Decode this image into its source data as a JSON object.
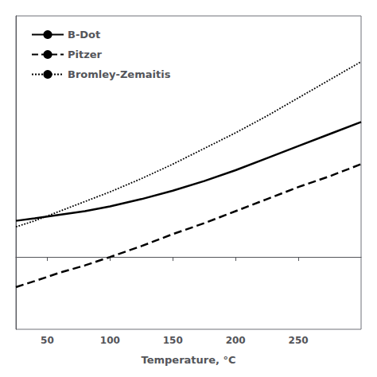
{
  "chart_data": {
    "type": "line",
    "xlabel": "Temperature, °C",
    "x": [
      25,
      40,
      60,
      80,
      100,
      125,
      150,
      175,
      200,
      225,
      250,
      275,
      300
    ],
    "series": [
      {
        "name": "B-Dot",
        "color": "#000000",
        "line_style": "solid",
        "values": [
          0.3,
          0.32,
          0.35,
          0.38,
          0.42,
          0.48,
          0.55,
          0.63,
          0.72,
          0.82,
          0.92,
          1.02,
          1.12
        ]
      },
      {
        "name": "Pitzer",
        "color": "#000000",
        "line_style": "dashed",
        "values": [
          -0.25,
          -0.2,
          -0.13,
          -0.07,
          0.0,
          0.09,
          0.19,
          0.28,
          0.38,
          0.48,
          0.58,
          0.67,
          0.77
        ]
      },
      {
        "name": "Bromley-Zemaitis",
        "color": "#000000",
        "line_style": "dotted",
        "values": [
          0.25,
          0.3,
          0.38,
          0.46,
          0.54,
          0.65,
          0.77,
          0.9,
          1.03,
          1.17,
          1.32,
          1.47,
          1.62
        ]
      }
    ],
    "xlim": [
      25,
      300
    ],
    "xticks": [
      50,
      100,
      150,
      200,
      250
    ],
    "ylim": [
      -0.6,
      2.0
    ],
    "tick_labels": "x",
    "grid": false,
    "legend": "upper left"
  }
}
